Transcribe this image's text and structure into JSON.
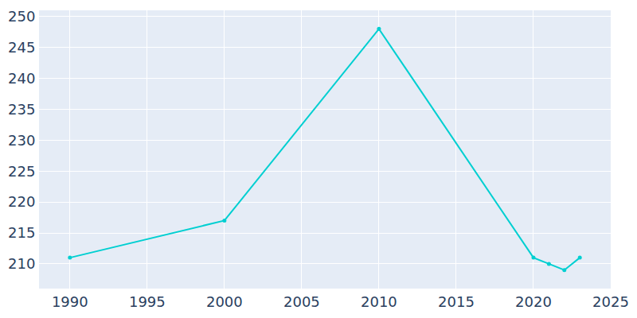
{
  "chart_data": {
    "type": "line",
    "x": [
      1990,
      2000,
      2010,
      2020,
      2021,
      2022,
      2023
    ],
    "values": [
      211,
      217,
      248,
      211,
      210,
      209,
      211
    ],
    "color": "#00cfd1",
    "marker": "circle",
    "xlim": [
      1988,
      2025
    ],
    "xticks": [
      1990,
      1995,
      2000,
      2005,
      2010,
      2015,
      2020,
      2025
    ],
    "ylim": [
      206,
      251
    ],
    "yticks": [
      210,
      215,
      220,
      225,
      230,
      235,
      240,
      245,
      250
    ],
    "grid": true
  }
}
